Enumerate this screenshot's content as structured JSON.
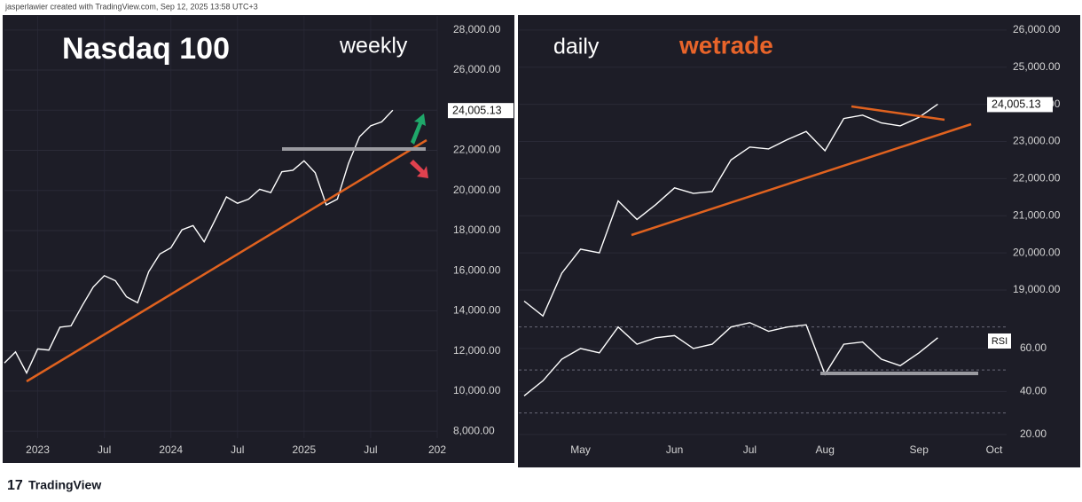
{
  "header": "jasperlawier created with TradingView.com, Sep 12, 2025 13:58 UTC+3",
  "footer": "TradingView",
  "chart_data": [
    {
      "type": "line",
      "title": "Nasdaq 100",
      "subtitle": "weekly",
      "color": "#ffffff",
      "grid": true,
      "x": [
        "2022-10",
        "2022-11",
        "2022-12",
        "2023-01",
        "2023-02",
        "2023-03",
        "2023-04",
        "2023-05",
        "2023-06",
        "2023-07",
        "2023-08",
        "2023-09",
        "2023-10",
        "2023-11",
        "2023-12",
        "2024-01",
        "2024-02",
        "2024-03",
        "2024-04",
        "2024-05",
        "2024-06",
        "2024-07",
        "2024-08",
        "2024-09",
        "2024-10",
        "2024-11",
        "2024-12",
        "2025-01",
        "2025-02",
        "2025-03",
        "2025-04",
        "2025-05",
        "2025-06",
        "2025-07",
        "2025-08",
        "2025-09"
      ],
      "values": [
        11400,
        11950,
        10900,
        12100,
        12040,
        13180,
        13250,
        14250,
        15180,
        15750,
        15500,
        14700,
        14400,
        15950,
        16830,
        17140,
        18040,
        18250,
        17440,
        18540,
        19680,
        19360,
        19570,
        20060,
        19890,
        20930,
        21010,
        21480,
        20880,
        19280,
        19570,
        21340,
        22680,
        23220,
        23420,
        24005
      ],
      "xlim": [
        "2022-10",
        "2026-01"
      ],
      "xticks": [
        {
          "value": "2023-01",
          "label": "2023"
        },
        {
          "value": "2023-07",
          "label": "Jul"
        },
        {
          "value": "2024-01",
          "label": "2024"
        },
        {
          "value": "2024-07",
          "label": "Jul"
        },
        {
          "value": "2025-01",
          "label": "2025"
        },
        {
          "value": "2025-07",
          "label": "Jul"
        },
        {
          "value": "2026-01",
          "label": "202"
        }
      ],
      "ylim": [
        6500,
        28700
      ],
      "yticks": [
        {
          "value": 8000,
          "label": "8,000.00"
        },
        {
          "value": 10000,
          "label": "10,000.00"
        },
        {
          "value": 12000,
          "label": "12,000.00"
        },
        {
          "value": 14000,
          "label": "14,000.00"
        },
        {
          "value": 16000,
          "label": "16,000.00"
        },
        {
          "value": 18000,
          "label": "18,000.00"
        },
        {
          "value": 20000,
          "label": "20,000.00"
        },
        {
          "value": 22000,
          "label": "22,000.00"
        },
        {
          "value": 24000,
          "label": "24,000.00"
        },
        {
          "value": 26000,
          "label": "26,000.00"
        },
        {
          "value": 28000,
          "label": "28,000.00"
        }
      ],
      "last_price": {
        "value": 24005.13,
        "label": "24,005.13"
      }
    },
    {
      "type": "line",
      "title": "daily",
      "logo": "wetrade",
      "color": "#ffffff",
      "grid": true,
      "categories": [
        null,
        null,
        null,
        "May",
        null,
        null,
        null,
        null,
        "Jun",
        null,
        null,
        null,
        "Jul",
        null,
        null,
        null,
        "Aug",
        null,
        null,
        null,
        null,
        "Sep",
        null,
        null,
        null,
        "Oct"
      ],
      "values": [
        18700,
        18300,
        19450,
        20100,
        20000,
        21400,
        20900,
        21300,
        21750,
        21600,
        21650,
        22500,
        22850,
        22800,
        23050,
        23270,
        22750,
        23620,
        23710,
        23500,
        23420,
        23650,
        24005,
        null,
        null,
        null
      ],
      "ylim": [
        18450,
        26380
      ],
      "yticks": [
        {
          "value": 19000,
          "label": "19,000.00"
        },
        {
          "value": 20000,
          "label": "20,000.00"
        },
        {
          "value": 21000,
          "label": "21,000.00"
        },
        {
          "value": 22000,
          "label": "22,000.00"
        },
        {
          "value": 23000,
          "label": "23,000.00"
        },
        {
          "value": 24000,
          "label": "24,000.00"
        },
        {
          "value": 25000,
          "label": "25,000.00"
        },
        {
          "value": 26000,
          "label": "26,000.00"
        }
      ],
      "last_price": {
        "value": 24005.13,
        "label": "24,005.13"
      }
    },
    {
      "type": "line",
      "title": "RSI",
      "color": "#ffffff",
      "grid": true,
      "values": [
        38,
        45,
        55,
        60,
        58,
        70,
        62,
        65,
        66,
        60,
        62,
        70,
        72,
        68,
        70,
        71,
        48,
        62,
        63,
        55,
        52,
        58,
        65,
        null,
        null,
        null
      ],
      "ylim": [
        7.6,
        77.7
      ],
      "yticks": [
        {
          "value": 20,
          "label": "20.00"
        },
        {
          "value": 40,
          "label": "40.00"
        },
        {
          "value": 60,
          "label": "60.00"
        }
      ],
      "hlines": [
        70,
        50,
        30
      ]
    }
  ]
}
